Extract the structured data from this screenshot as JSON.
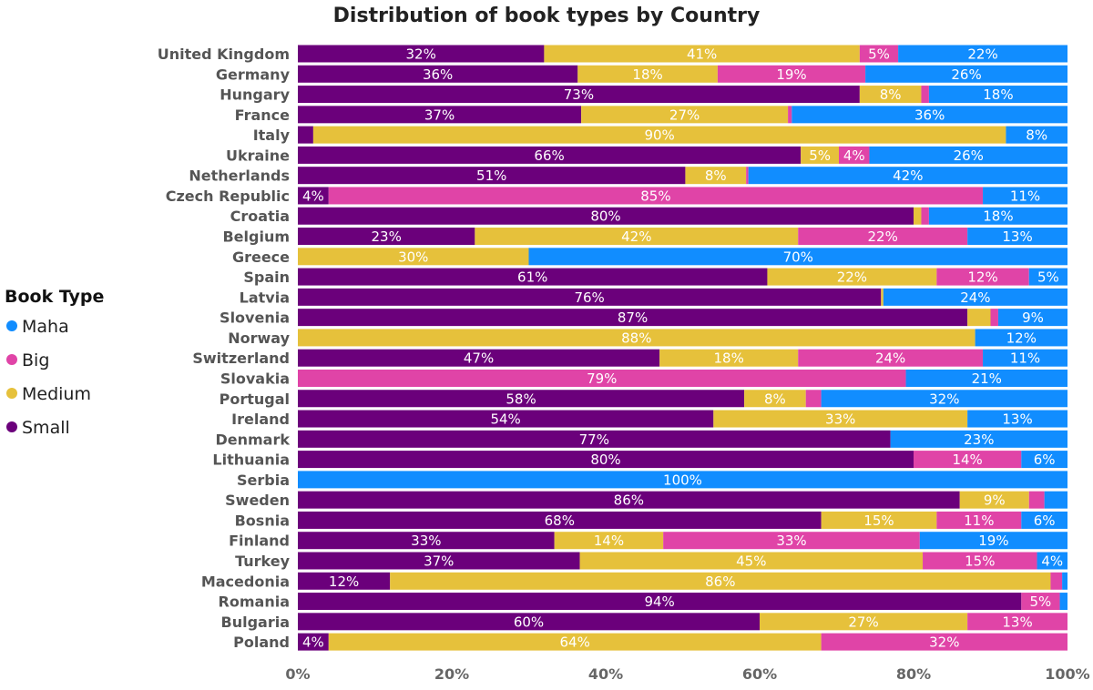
{
  "chart_data": {
    "type": "bar",
    "orientation": "horizontal",
    "stacked": "percent",
    "title": "Distribution of book types by Country",
    "xlabel": "",
    "ylabel": "",
    "xlim": [
      0,
      100
    ],
    "x_ticks": [
      "0%",
      "20%",
      "40%",
      "60%",
      "80%",
      "100%"
    ],
    "legend": {
      "title": "Book Type",
      "placement": "left",
      "entries": [
        "Maha",
        "Big",
        "Medium",
        "Small"
      ]
    },
    "categories": [
      "United Kingdom",
      "Germany",
      "Hungary",
      "France",
      "Italy",
      "Ukraine",
      "Netherlands",
      "Czech Republic",
      "Croatia",
      "Belgium",
      "Greece",
      "Spain",
      "Latvia",
      "Slovenia",
      "Norway",
      "Switzerland",
      "Slovakia",
      "Portugal",
      "Ireland",
      "Denmark",
      "Lithuania",
      "Serbia",
      "Sweden",
      "Bosnia",
      "Finland",
      "Turkey",
      "Macedonia",
      "Romania",
      "Bulgaria",
      "Poland"
    ],
    "series": [
      {
        "name": "Small",
        "color": "#6B007B",
        "values": [
          32,
          36,
          73,
          37,
          2,
          66,
          51,
          4,
          80,
          23,
          0,
          61,
          76,
          87,
          0,
          47,
          0,
          58,
          54,
          77,
          80,
          0,
          86,
          68,
          33,
          37,
          12,
          94,
          60,
          4
        ]
      },
      {
        "name": "Medium",
        "color": "#E6C13B",
        "values": [
          41,
          18,
          8,
          27,
          90,
          5,
          8,
          0,
          1,
          42,
          30,
          22,
          0.3,
          3,
          88,
          18,
          0,
          8,
          33,
          0,
          0,
          0,
          9,
          15,
          14,
          45,
          86,
          0,
          27,
          64
        ]
      },
      {
        "name": "Big",
        "color": "#E044A7",
        "values": [
          5,
          19,
          1,
          0.5,
          0,
          4,
          0.3,
          85,
          1,
          22,
          0,
          12,
          0,
          1,
          0,
          24,
          79,
          2,
          0,
          0,
          14,
          0,
          2,
          11,
          33,
          15,
          1.5,
          5,
          13,
          32
        ]
      },
      {
        "name": "Maha",
        "color": "#118DFF",
        "values": [
          22,
          26,
          18,
          36,
          8,
          26,
          42,
          11,
          18,
          13,
          70,
          5,
          24,
          9,
          12,
          11,
          21,
          32,
          13,
          23,
          6,
          100,
          3,
          6,
          19,
          4,
          0.7,
          1,
          0,
          0
        ]
      }
    ]
  }
}
